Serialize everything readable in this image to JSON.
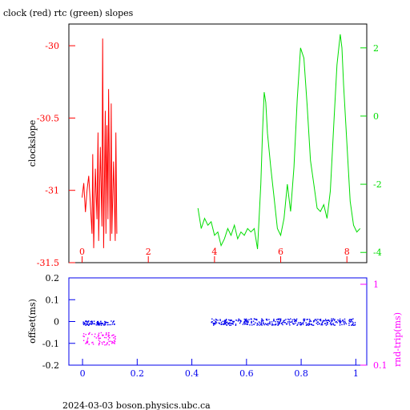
{
  "title": "clock (red) rtc (green) slopes",
  "footer": "2024-03-03  boson.physics.ubc.ca",
  "colors": {
    "red": "#ff0000",
    "green": "#00dd00",
    "blue": "#0000ee",
    "magenta": "#ff00ff",
    "black": "#000000"
  },
  "chart_data": [
    {
      "type": "line",
      "title": "clock (red) rtc (green) slopes",
      "ylabel": "clockslope",
      "xlim": [
        -0.4,
        8.6
      ],
      "ylim_left": [
        -31.5,
        -29.85
      ],
      "ylim_right": [
        -4.3,
        2.7
      ],
      "x_ticks": [
        "0",
        "2",
        "4",
        "6",
        "8"
      ],
      "y_ticks_left": [
        "-30",
        "-30.5",
        "-31",
        "-31.5"
      ],
      "y_ticks_right": [
        "2",
        "0",
        "-2",
        "-4"
      ],
      "series": [
        {
          "axis": "left",
          "color": "red",
          "points": [
            [
              0.0,
              -31.05
            ],
            [
              0.05,
              -30.95
            ],
            [
              0.1,
              -31.15
            ],
            [
              0.15,
              -31.0
            ],
            [
              0.2,
              -30.9
            ],
            [
              0.25,
              -31.1
            ],
            [
              0.3,
              -31.3
            ],
            [
              0.32,
              -30.75
            ],
            [
              0.35,
              -31.4
            ],
            [
              0.4,
              -30.85
            ],
            [
              0.45,
              -31.2
            ],
            [
              0.48,
              -30.6
            ],
            [
              0.5,
              -31.35
            ],
            [
              0.55,
              -30.7
            ],
            [
              0.6,
              -31.25
            ],
            [
              0.62,
              -29.95
            ],
            [
              0.65,
              -31.4
            ],
            [
              0.7,
              -30.45
            ],
            [
              0.72,
              -31.3
            ],
            [
              0.75,
              -30.55
            ],
            [
              0.78,
              -31.2
            ],
            [
              0.8,
              -30.3
            ],
            [
              0.85,
              -31.35
            ],
            [
              0.88,
              -30.4
            ],
            [
              0.9,
              -31.3
            ],
            [
              0.95,
              -30.8
            ],
            [
              1.0,
              -31.35
            ],
            [
              1.02,
              -30.6
            ],
            [
              1.05,
              -31.3
            ]
          ]
        },
        {
          "axis": "right",
          "color": "green",
          "points": [
            [
              3.5,
              -2.7
            ],
            [
              3.6,
              -3.3
            ],
            [
              3.7,
              -3.0
            ],
            [
              3.8,
              -3.2
            ],
            [
              3.9,
              -3.1
            ],
            [
              4.0,
              -3.5
            ],
            [
              4.1,
              -3.4
            ],
            [
              4.2,
              -3.8
            ],
            [
              4.3,
              -3.6
            ],
            [
              4.4,
              -3.3
            ],
            [
              4.5,
              -3.5
            ],
            [
              4.6,
              -3.2
            ],
            [
              4.7,
              -3.6
            ],
            [
              4.8,
              -3.4
            ],
            [
              4.9,
              -3.5
            ],
            [
              5.0,
              -3.3
            ],
            [
              5.1,
              -3.4
            ],
            [
              5.2,
              -3.3
            ],
            [
              5.3,
              -3.9
            ],
            [
              5.4,
              -2.0
            ],
            [
              5.45,
              -0.5
            ],
            [
              5.5,
              0.7
            ],
            [
              5.55,
              0.4
            ],
            [
              5.6,
              -0.5
            ],
            [
              5.7,
              -1.5
            ],
            [
              5.8,
              -2.4
            ],
            [
              5.9,
              -3.3
            ],
            [
              6.0,
              -3.5
            ],
            [
              6.1,
              -3.0
            ],
            [
              6.2,
              -2.0
            ],
            [
              6.3,
              -2.8
            ],
            [
              6.4,
              -1.5
            ],
            [
              6.5,
              0.5
            ],
            [
              6.6,
              2.0
            ],
            [
              6.7,
              1.7
            ],
            [
              6.8,
              0.3
            ],
            [
              6.9,
              -1.3
            ],
            [
              7.0,
              -2.0
            ],
            [
              7.1,
              -2.7
            ],
            [
              7.2,
              -2.8
            ],
            [
              7.3,
              -2.6
            ],
            [
              7.4,
              -3.0
            ],
            [
              7.5,
              -2.2
            ],
            [
              7.6,
              -0.3
            ],
            [
              7.7,
              1.5
            ],
            [
              7.8,
              2.4
            ],
            [
              7.85,
              2.0
            ],
            [
              7.9,
              0.9
            ],
            [
              8.0,
              -0.8
            ],
            [
              8.1,
              -2.5
            ],
            [
              8.2,
              -3.2
            ],
            [
              8.3,
              -3.4
            ],
            [
              8.4,
              -3.3
            ]
          ]
        }
      ]
    },
    {
      "type": "scatter",
      "ylabel": "offset(ms)",
      "ylabel_right": "rnd-trip(ms)",
      "xlim": [
        -0.05,
        1.04
      ],
      "ylim": [
        -0.2,
        0.2
      ],
      "ylim_right_log": [
        0.1,
        1.2
      ],
      "x_ticks": [
        "0",
        "0.2",
        "0.4",
        "0.6",
        "0.8",
        "1"
      ],
      "y_ticks_left": [
        "0.2",
        "0.1",
        "0",
        "-0.1",
        "-0.2"
      ],
      "y_ticks_right": [
        "1",
        "0.1"
      ],
      "series": [
        {
          "name": "offset",
          "color": "blue",
          "segments": [
            {
              "x": [
                0.0,
                0.12
              ],
              "y_center": -0.005,
              "spread": 0.01
            },
            {
              "x": [
                0.47,
                1.0
              ],
              "y_center": 0.0,
              "spread": 0.015
            }
          ]
        },
        {
          "name": "rnd-trip",
          "color": "magenta",
          "segments": [
            {
              "x": [
                0.0,
                0.12
              ],
              "y_center": -0.075,
              "spread": 0.03
            }
          ]
        }
      ]
    }
  ]
}
